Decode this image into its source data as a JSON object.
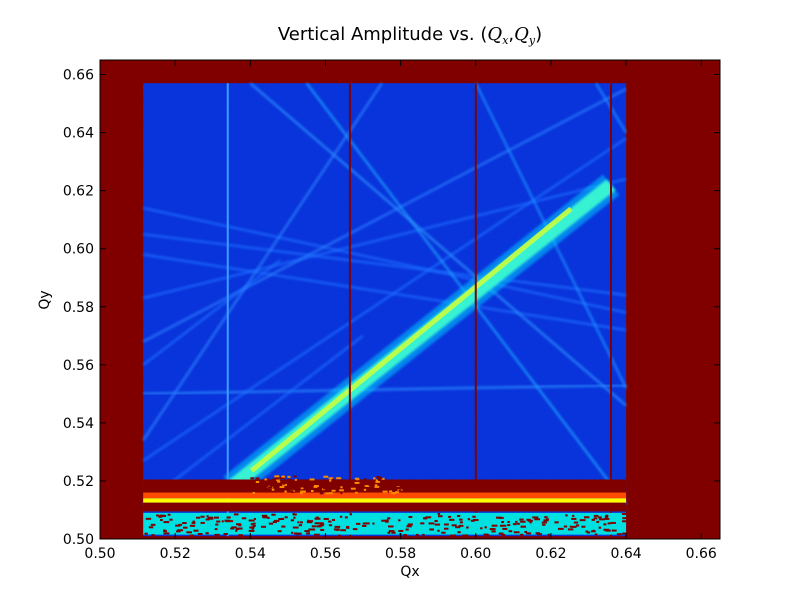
{
  "chart_data": {
    "type": "heatmap",
    "title": {
      "prefix": "Vertical Amplitude vs. ",
      "open": "(",
      "q1": "Q",
      "q1_sub": "x",
      "comma": ",",
      "q2": "Q",
      "q2_sub": "y",
      "close": ")"
    },
    "xlabel": "Qx",
    "ylabel": "Qy",
    "xlim": [
      0.5,
      0.665
    ],
    "ylim": [
      0.5,
      0.665
    ],
    "xticks": [
      {
        "value": 0.5,
        "label": "0.50"
      },
      {
        "value": 0.52,
        "label": "0.52"
      },
      {
        "value": 0.54,
        "label": "0.54"
      },
      {
        "value": 0.56,
        "label": "0.56"
      },
      {
        "value": 0.58,
        "label": "0.58"
      },
      {
        "value": 0.6,
        "label": "0.60"
      },
      {
        "value": 0.62,
        "label": "0.62"
      },
      {
        "value": 0.64,
        "label": "0.64"
      },
      {
        "value": 0.66,
        "label": "0.66"
      }
    ],
    "yticks": [
      {
        "value": 0.5,
        "label": "0.50"
      },
      {
        "value": 0.52,
        "label": "0.52"
      },
      {
        "value": 0.54,
        "label": "0.54"
      },
      {
        "value": 0.56,
        "label": "0.56"
      },
      {
        "value": 0.58,
        "label": "0.58"
      },
      {
        "value": 0.6,
        "label": "0.60"
      },
      {
        "value": 0.62,
        "label": "0.62"
      },
      {
        "value": 0.64,
        "label": "0.64"
      },
      {
        "value": 0.66,
        "label": "0.66"
      }
    ],
    "colormap": "jet",
    "background_color": "#800000",
    "valid_region": {
      "x": [
        0.5115,
        0.64
      ],
      "y": [
        0.501,
        0.657
      ]
    },
    "field_color": "#0a2ed8",
    "diagonal_band": {
      "from": [
        0.535,
        0.518
      ],
      "to": [
        0.636,
        0.622
      ]
    },
    "resonance_lines": [
      {
        "from": [
          0.5115,
          0.614
        ],
        "to": [
          0.64,
          0.578
        ],
        "color": "#1e6cff"
      },
      {
        "from": [
          0.5115,
          0.605
        ],
        "to": [
          0.64,
          0.584
        ],
        "color": "#1e6cff"
      },
      {
        "from": [
          0.5115,
          0.598
        ],
        "to": [
          0.64,
          0.572
        ],
        "color": "#1e6cff"
      },
      {
        "from": [
          0.5115,
          0.55
        ],
        "to": [
          0.64,
          0.553
        ],
        "color": "#2a8cff"
      },
      {
        "from": [
          0.5115,
          0.583
        ],
        "to": [
          0.64,
          0.624
        ],
        "color": "#1e6cff"
      },
      {
        "from": [
          0.5115,
          0.568
        ],
        "to": [
          0.64,
          0.655
        ],
        "color": "#2a7cff"
      },
      {
        "from": [
          0.5115,
          0.527
        ],
        "to": [
          0.64,
          0.638
        ],
        "color": "#1e6cff"
      },
      {
        "from": [
          0.5115,
          0.512
        ],
        "to": [
          0.57,
          0.57
        ],
        "color": "#1e6cff"
      },
      {
        "from": [
          0.555,
          0.657
        ],
        "to": [
          0.64,
          0.512
        ],
        "color": "#1ea0ff"
      },
      {
        "from": [
          0.6,
          0.657
        ],
        "to": [
          0.64,
          0.552
        ],
        "color": "#1e8cff"
      },
      {
        "from": [
          0.54,
          0.657
        ],
        "to": [
          0.64,
          0.546
        ],
        "color": "#2a90ff"
      },
      {
        "from": [
          0.5115,
          0.56
        ],
        "to": [
          0.548,
          0.596
        ],
        "color": "#1e6cff"
      },
      {
        "from": [
          0.5115,
          0.534
        ],
        "to": [
          0.575,
          0.657
        ],
        "color": "#2a80ff"
      },
      {
        "from": [
          0.632,
          0.657
        ],
        "to": [
          0.64,
          0.64
        ],
        "color": "#1e8cff"
      }
    ],
    "vertical_lines": [
      {
        "x": 0.534,
        "color": "#3aa0ff"
      },
      {
        "x": 0.5665,
        "color": "#800000"
      },
      {
        "x": 0.6,
        "color": "#800000"
      },
      {
        "x": 0.636,
        "color": "#800000"
      }
    ],
    "bottom_bands": [
      {
        "y": [
          0.5155,
          0.5205
        ],
        "color": "#800000"
      },
      {
        "y": [
          0.514,
          0.516
        ],
        "color": "#ff4a00"
      },
      {
        "y": [
          0.5125,
          0.514
        ],
        "color": "#ffff00"
      },
      {
        "y": [
          0.5095,
          0.5125
        ],
        "color": "#800000"
      },
      {
        "y": [
          0.5015,
          0.509
        ],
        "color": "#00e0e0"
      }
    ]
  }
}
